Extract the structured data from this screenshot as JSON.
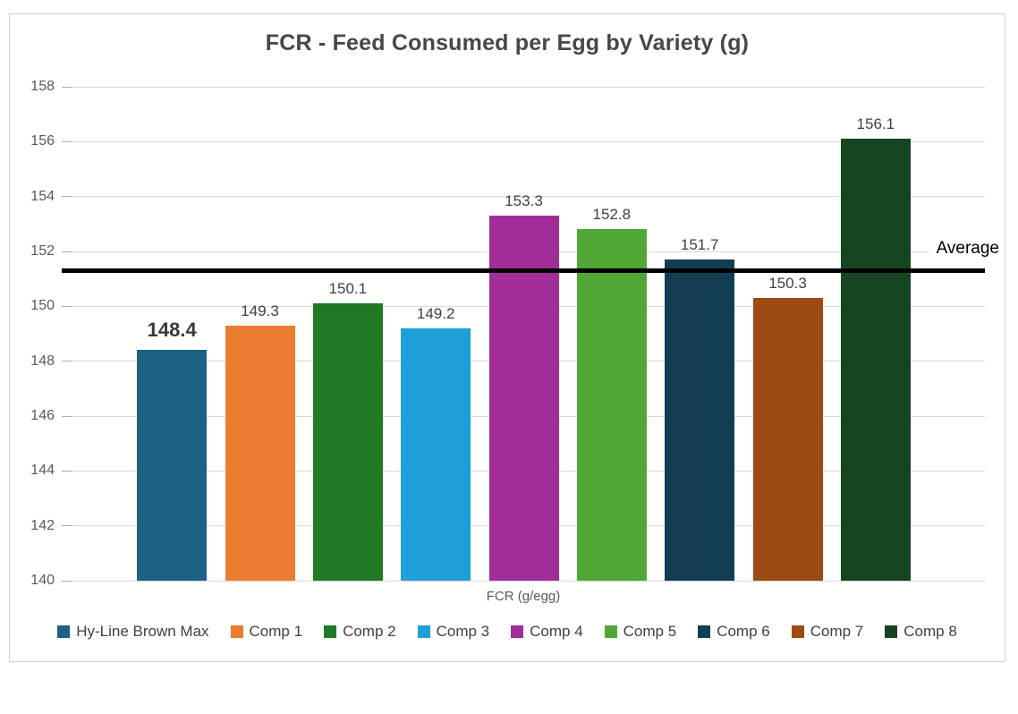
{
  "colors": {
    "background": "#ffffff",
    "frame_border": "#d2d0cd",
    "grid": "#d9d9d9",
    "tick": "#aeaeae",
    "axis_text": "#595959",
    "title_text": "#474747",
    "value_text": "#404040",
    "average_line": "#000000"
  },
  "chart_data": {
    "type": "bar",
    "title": "FCR - Feed Consumed per Egg by Variety (g)",
    "xlabel": "FCR (g/egg)",
    "ylabel": "",
    "ylim": [
      140,
      158
    ],
    "yticks": [
      158,
      156,
      154,
      152,
      150,
      148,
      146,
      144,
      142,
      140
    ],
    "grid": true,
    "legend_position": "bottom",
    "categories": [
      "Hy-Line Brown Max",
      "Comp 1",
      "Comp 2",
      "Comp 3",
      "Comp 4",
      "Comp 5",
      "Comp 6",
      "Comp 7",
      "Comp 8"
    ],
    "values": [
      148.4,
      149.3,
      150.1,
      149.2,
      153.3,
      152.8,
      151.7,
      150.3,
      156.1
    ],
    "value_labels": [
      "148.4",
      "149.3",
      "150.1",
      "149.2",
      "153.3",
      "152.8",
      "151.7",
      "150.3",
      "156.1"
    ],
    "bar_colors": [
      "#1b6283",
      "#ec7c30",
      "#1f7a23",
      "#1e9fd8",
      "#a32c9b",
      "#4fa833",
      "#113e53",
      "#9e4a13",
      "#154420"
    ],
    "emphasized_index": 0,
    "average_line": {
      "value": 151.3,
      "label": "Average"
    }
  }
}
